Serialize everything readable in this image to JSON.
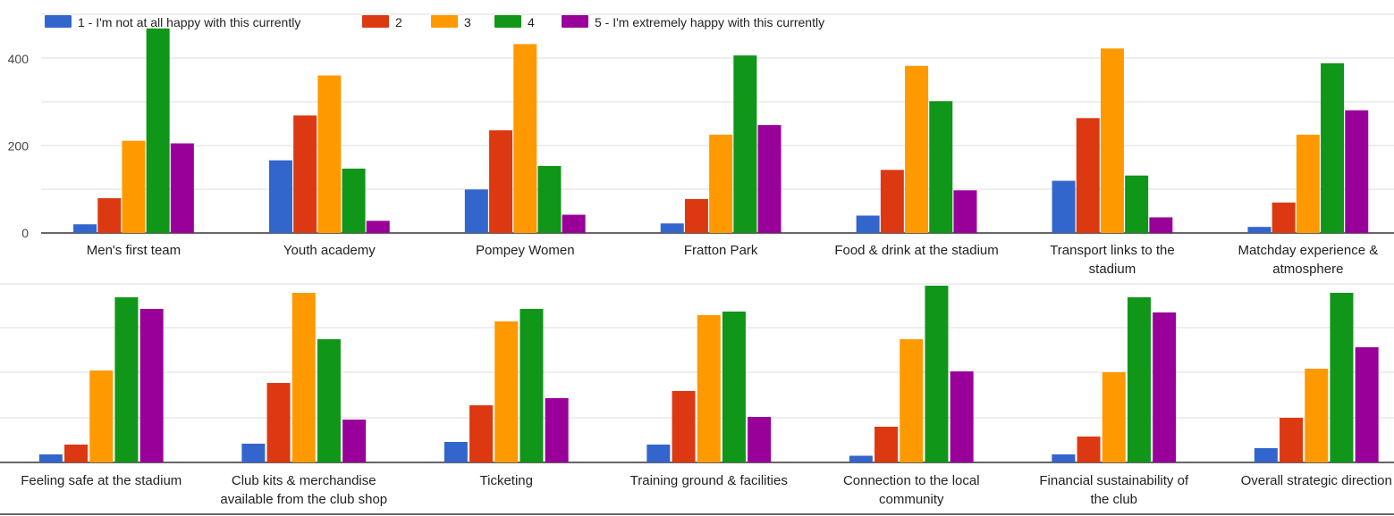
{
  "chart_data": [
    {
      "type": "bar",
      "ylim": [
        0,
        480
      ],
      "yticks": [
        0,
        200,
        400
      ],
      "grid": true,
      "legend_position": "top",
      "categories": [
        [
          "Men's first team"
        ],
        [
          "Youth academy"
        ],
        [
          "Pompey Women"
        ],
        [
          "Fratton Park"
        ],
        [
          "Food & drink at the stadium"
        ],
        [
          "Transport links to the",
          "stadium"
        ],
        [
          "Matchday experience &",
          "atmosphere"
        ]
      ],
      "series": [
        {
          "name": "1 - I'm not at all happy with this currently",
          "color": "#3366cc",
          "values": [
            20,
            167,
            100,
            22,
            40,
            120,
            14
          ]
        },
        {
          "name": "2",
          "color": "#dc3912",
          "values": [
            80,
            270,
            236,
            78,
            145,
            264,
            70
          ]
        },
        {
          "name": "3",
          "color": "#ff9900",
          "values": [
            212,
            362,
            434,
            226,
            384,
            424,
            226
          ]
        },
        {
          "name": "4",
          "color": "#109618",
          "values": [
            470,
            148,
            154,
            408,
            303,
            132,
            390
          ]
        },
        {
          "name": "5 - I'm extremely happy with this currently",
          "color": "#990099",
          "values": [
            206,
            28,
            42,
            248,
            98,
            36,
            282
          ]
        }
      ]
    },
    {
      "type": "bar",
      "ylim": [
        0,
        400
      ],
      "grid": true,
      "categories": [
        [
          "Feeling safe at the stadium"
        ],
        [
          "Club kits & merchandise",
          "available from the club shop"
        ],
        [
          "Ticketing"
        ],
        [
          "Training ground & facilities"
        ],
        [
          "Connection to the local",
          "community"
        ],
        [
          "Financial sustainability of",
          "the club"
        ],
        [
          "Overall strategic direction"
        ]
      ],
      "series": [
        {
          "name": "1",
          "color": "#3366cc",
          "values": [
            18,
            42,
            46,
            40,
            15,
            18,
            32
          ]
        },
        {
          "name": "2",
          "color": "#dc3912",
          "values": [
            40,
            178,
            128,
            160,
            80,
            58,
            100
          ]
        },
        {
          "name": "3",
          "color": "#ff9900",
          "values": [
            206,
            380,
            316,
            330,
            276,
            202,
            210
          ]
        },
        {
          "name": "4",
          "color": "#109618",
          "values": [
            370,
            276,
            344,
            338,
            396,
            370,
            380
          ]
        },
        {
          "name": "5",
          "color": "#990099",
          "values": [
            344,
            96,
            144,
            102,
            204,
            336,
            258
          ]
        }
      ]
    }
  ]
}
